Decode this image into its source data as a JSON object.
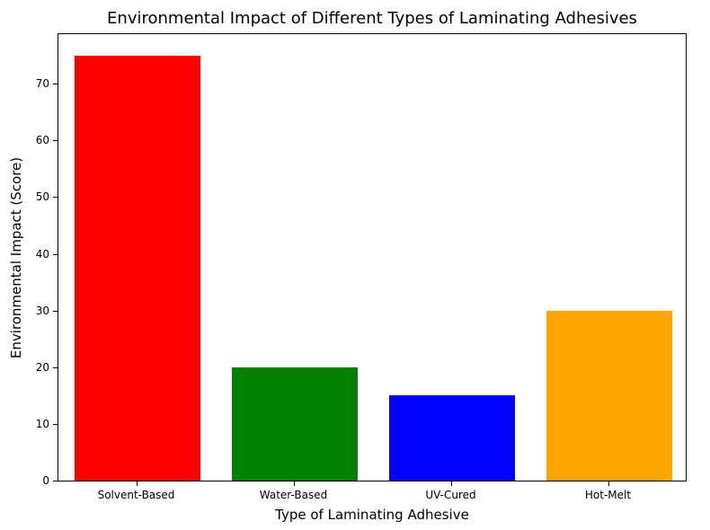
{
  "chart_data": {
    "type": "bar",
    "title": "Environmental Impact of Different Types of Laminating Adhesives",
    "xlabel": "Type of Laminating Adhesive",
    "ylabel": "Environmental Impact (Score)",
    "categories": [
      "Solvent-Based",
      "Water-Based",
      "UV-Cured",
      "Hot-Melt"
    ],
    "values": [
      75,
      20,
      15,
      30
    ],
    "colors": [
      "#ff0000",
      "#008000",
      "#0000ff",
      "#ffa500"
    ],
    "ylim": [
      0,
      78.75
    ],
    "yticks": [
      0,
      10,
      20,
      30,
      40,
      50,
      60,
      70
    ],
    "grid": false,
    "legend": false,
    "bar_width_fraction": 0.8,
    "spine_color": "#000000",
    "background_color": "#ffffff"
  }
}
